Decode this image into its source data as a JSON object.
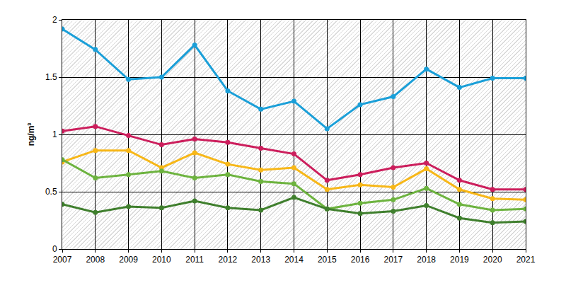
{
  "chart_data": {
    "type": "line",
    "y_label": "ng/m³",
    "x": [
      2007,
      2008,
      2009,
      2010,
      2011,
      2012,
      2013,
      2014,
      2015,
      2016,
      2017,
      2018,
      2019,
      2020,
      2021
    ],
    "series": [
      {
        "color": "#1a9fd8",
        "values": [
          1.92,
          1.74,
          1.48,
          1.5,
          1.78,
          1.38,
          1.22,
          1.29,
          1.05,
          1.26,
          1.33,
          1.57,
          1.41,
          1.49,
          1.49
        ]
      },
      {
        "color": "#cc1e5c",
        "values": [
          1.03,
          1.07,
          0.99,
          0.91,
          0.96,
          0.93,
          0.88,
          0.83,
          0.6,
          0.65,
          0.71,
          0.75,
          0.6,
          0.52,
          0.52
        ]
      },
      {
        "color": "#f7b718",
        "values": [
          0.76,
          0.86,
          0.86,
          0.71,
          0.84,
          0.74,
          0.69,
          0.71,
          0.52,
          0.56,
          0.54,
          0.7,
          0.52,
          0.44,
          0.43
        ]
      },
      {
        "color": "#6db33f",
        "values": [
          0.78,
          0.62,
          0.65,
          0.68,
          0.62,
          0.65,
          0.59,
          0.57,
          0.35,
          0.4,
          0.43,
          0.53,
          0.39,
          0.34,
          0.35
        ]
      },
      {
        "color": "#3f7f2d",
        "values": [
          0.39,
          0.32,
          0.37,
          0.36,
          0.42,
          0.36,
          0.34,
          0.45,
          0.35,
          0.31,
          0.33,
          0.38,
          0.27,
          0.23,
          0.24
        ]
      }
    ],
    "xlim": [
      2007,
      2021
    ],
    "xticks": [
      2007,
      2008,
      2009,
      2010,
      2011,
      2012,
      2013,
      2014,
      2015,
      2016,
      2017,
      2018,
      2019,
      2020,
      2021
    ],
    "ylim": [
      0,
      2
    ],
    "yticks": [
      0,
      0.5,
      1,
      1.5,
      2
    ],
    "grid": true,
    "marker": "circle",
    "line_style": "solid"
  }
}
